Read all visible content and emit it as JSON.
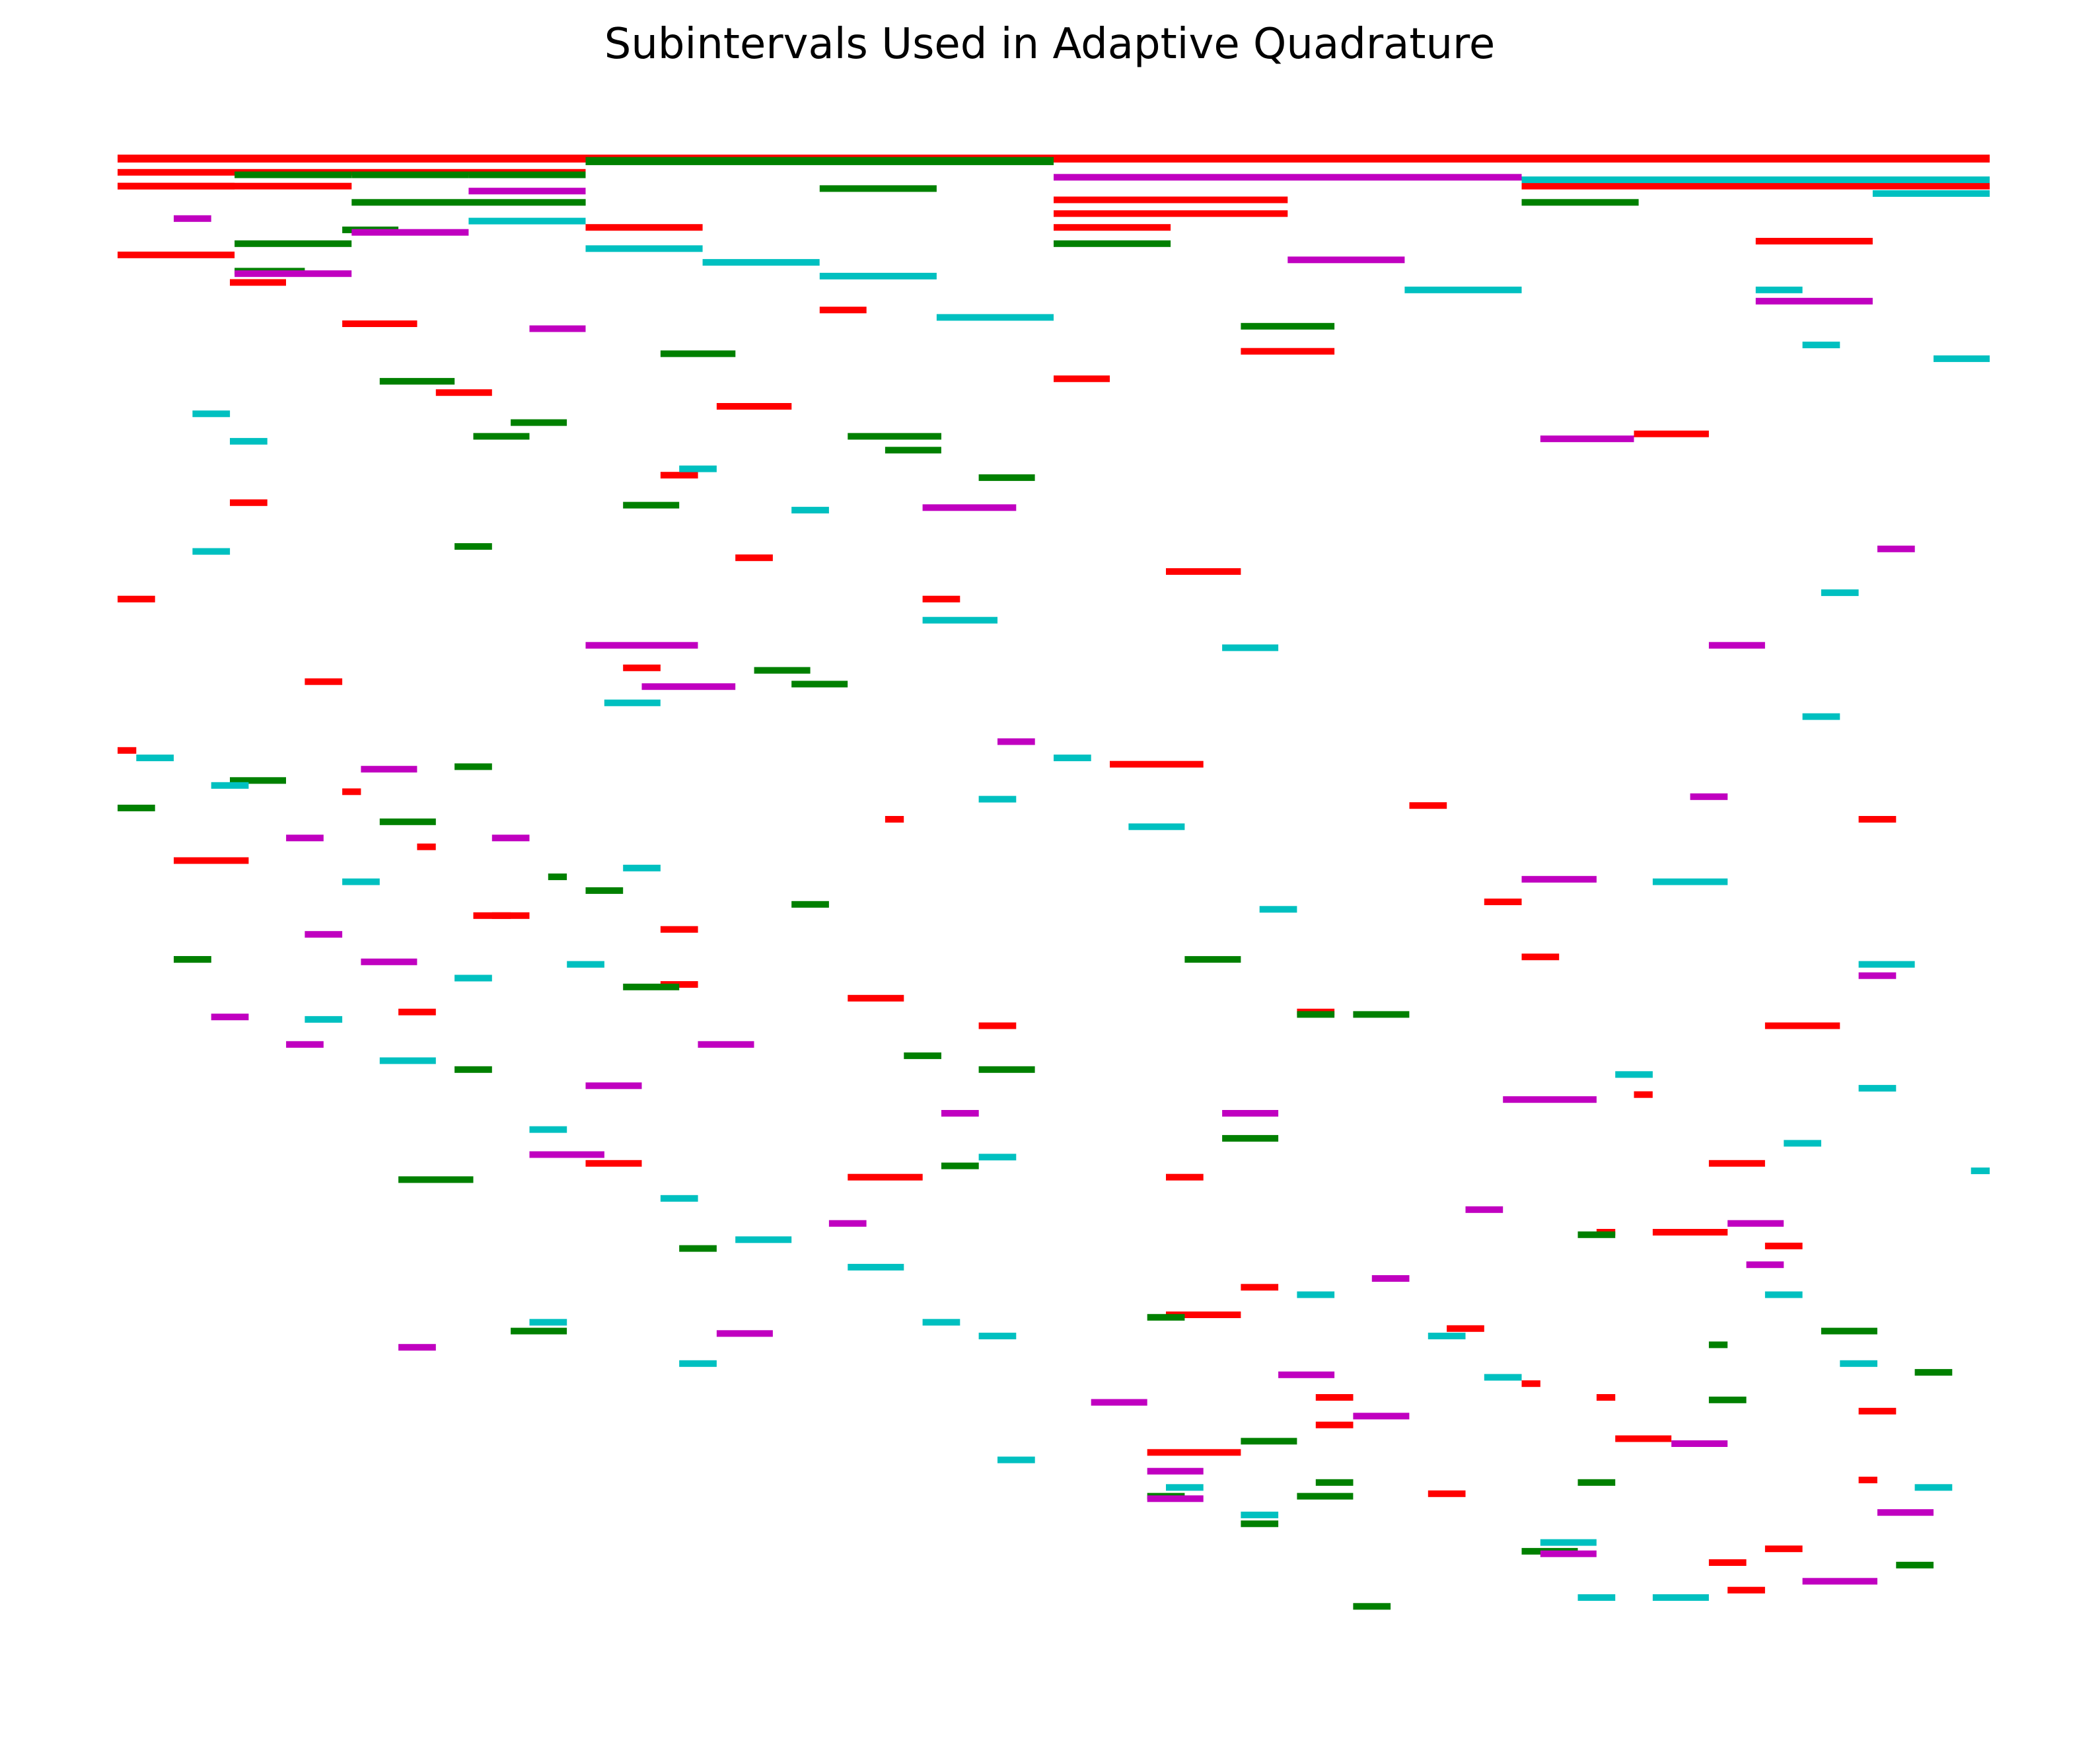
{
  "chart_data": {
    "type": "bar",
    "title": "Subintervals Used in Adaptive Quadrature",
    "xlabel": "",
    "ylabel": "",
    "axis_visible": false,
    "grid": false,
    "legend": "none",
    "xlim": [
      0,
      1
    ],
    "ylim": [
      0,
      108
    ],
    "series": [
      {
        "color": "#ff0000",
        "intervals": [
          [
            0,
            1,
            0
          ],
          [
            0,
            0.0625,
            2
          ],
          [
            0,
            0.25,
            1
          ],
          [
            0,
            0.0625,
            7
          ],
          [
            0,
            0.5,
            0
          ],
          [
            0.5,
            0.625,
            3
          ],
          [
            0.75,
            1,
            2
          ],
          [
            0,
            0.125,
            2
          ],
          [
            0.25,
            0.3125,
            5
          ],
          [
            0.5,
            0.5625,
            5
          ],
          [
            0.5,
            0.625,
            4
          ],
          [
            0.875,
            0.9375,
            6
          ],
          [
            0.6,
            0.65,
            14
          ],
          [
            0.12,
            0.16,
            12
          ],
          [
            0.06,
            0.09,
            9
          ],
          [
            0.5,
            0.53,
            16
          ],
          [
            0.17,
            0.2,
            17
          ],
          [
            0.32,
            0.36,
            18
          ],
          [
            0.81,
            0.85,
            20
          ],
          [
            0.29,
            0.31,
            23
          ],
          [
            0.375,
            0.4,
            11
          ],
          [
            0.33,
            0.35,
            29
          ],
          [
            0.0,
            0.01,
            43
          ],
          [
            0.12,
            0.13,
            46
          ],
          [
            0.16,
            0.17,
            50
          ],
          [
            0.2,
            0.22,
            55
          ],
          [
            0.29,
            0.31,
            60
          ],
          [
            0.27,
            0.29,
            37
          ],
          [
            0.43,
            0.45,
            32
          ],
          [
            0.63,
            0.65,
            62
          ],
          [
            0.56,
            0.58,
            74
          ],
          [
            0.79,
            0.8,
            78
          ],
          [
            0.88,
            0.92,
            63
          ],
          [
            0.85,
            0.88,
            73
          ],
          [
            0.15,
            0.17,
            62
          ],
          [
            0.0,
            0.02,
            32
          ],
          [
            0.06,
            0.08,
            25
          ],
          [
            0.53,
            0.58,
            44
          ],
          [
            0.69,
            0.71,
            47
          ],
          [
            0.73,
            0.75,
            54
          ],
          [
            0.75,
            0.77,
            58
          ],
          [
            0.81,
            0.82,
            68
          ],
          [
            0.93,
            0.95,
            48
          ],
          [
            0.56,
            0.6,
            30
          ],
          [
            0.41,
            0.42,
            48
          ],
          [
            0.46,
            0.48,
            63
          ],
          [
            0.55,
            0.6,
            94
          ],
          [
            0.6,
            0.62,
            82
          ],
          [
            0.64,
            0.66,
            90
          ],
          [
            0.71,
            0.73,
            85
          ],
          [
            0.79,
            0.8,
            90
          ],
          [
            0.82,
            0.86,
            78
          ],
          [
            0.88,
            0.9,
            79
          ],
          [
            0.93,
            0.95,
            91
          ],
          [
            0.93,
            0.94,
            96
          ],
          [
            0.03,
            0.07,
            51
          ],
          [
            0.1,
            0.12,
            38
          ],
          [
            0.19,
            0.21,
            55
          ],
          [
            0.29,
            0.31,
            56
          ],
          [
            0.25,
            0.28,
            73
          ],
          [
            0.39,
            0.42,
            61
          ],
          [
            0.39,
            0.43,
            74
          ],
          [
            0.56,
            0.6,
            84
          ],
          [
            0.64,
            0.66,
            92
          ],
          [
            0.7,
            0.72,
            97
          ],
          [
            0.86,
            0.88,
            104
          ],
          [
            0.88,
            0.9,
            101
          ],
          [
            0.85,
            0.87,
            102
          ],
          [
            0.75,
            0.76,
            89
          ],
          [
            0.8,
            0.83,
            93
          ]
        ]
      },
      {
        "color": "#008000",
        "intervals": [
          [
            0.25,
            0.5,
            0
          ],
          [
            0.0625,
            0.125,
            1
          ],
          [
            0.125,
            0.1875,
            1
          ],
          [
            0.1875,
            0.25,
            1
          ],
          [
            0.0625,
            0.125,
            6
          ],
          [
            0.125,
            0.25,
            3
          ],
          [
            0.25,
            0.5,
            0
          ],
          [
            0.375,
            0.4375,
            2
          ],
          [
            0.0625,
            0.1,
            8
          ],
          [
            0.75,
            0.8125,
            3
          ],
          [
            0.5,
            0.5625,
            6
          ],
          [
            0.6,
            0.65,
            12
          ],
          [
            0.14,
            0.18,
            16
          ],
          [
            0.21,
            0.24,
            19
          ],
          [
            0.27,
            0.3,
            25
          ],
          [
            0.39,
            0.44,
            20
          ],
          [
            0.41,
            0.44,
            21
          ],
          [
            0.46,
            0.49,
            23
          ],
          [
            0.12,
            0.15,
            5
          ],
          [
            0.19,
            0.22,
            20
          ],
          [
            0.34,
            0.37,
            37
          ],
          [
            0.36,
            0.39,
            38
          ],
          [
            0.06,
            0.09,
            45
          ],
          [
            0.14,
            0.17,
            48
          ],
          [
            0.23,
            0.24,
            52
          ],
          [
            0.27,
            0.3,
            60
          ],
          [
            0.15,
            0.19,
            74
          ],
          [
            0.57,
            0.6,
            58
          ],
          [
            0.66,
            0.69,
            62
          ],
          [
            0.42,
            0.44,
            65
          ],
          [
            0.55,
            0.57,
            84
          ],
          [
            0.6,
            0.63,
            93
          ],
          [
            0.64,
            0.66,
            96
          ],
          [
            0.75,
            0.78,
            101
          ],
          [
            0.85,
            0.87,
            90
          ],
          [
            0.03,
            0.05,
            58
          ],
          [
            0.18,
            0.2,
            44
          ],
          [
            0.29,
            0.33,
            14
          ],
          [
            0.78,
            0.8,
            78
          ],
          [
            0.85,
            0.86,
            86
          ],
          [
            0.96,
            0.98,
            88
          ],
          [
            0.46,
            0.49,
            66
          ],
          [
            0.59,
            0.62,
            71
          ],
          [
            0.63,
            0.66,
            97
          ],
          [
            0.78,
            0.8,
            96
          ],
          [
            0.21,
            0.24,
            85
          ],
          [
            0.3,
            0.32,
            79
          ],
          [
            0.91,
            0.94,
            85
          ],
          [
            0.95,
            0.97,
            102
          ],
          [
            0.18,
            0.2,
            66
          ],
          [
            0.63,
            0.65,
            62
          ],
          [
            0.0,
            0.02,
            47
          ],
          [
            0.03,
            0.05,
            58
          ],
          [
            0.18,
            0.2,
            28
          ],
          [
            0.25,
            0.27,
            53
          ],
          [
            0.36,
            0.38,
            54
          ],
          [
            0.44,
            0.46,
            73
          ],
          [
            0.55,
            0.57,
            97
          ],
          [
            0.6,
            0.62,
            99
          ],
          [
            0.66,
            0.68,
            105
          ]
        ]
      },
      {
        "color": "#c000c0",
        "intervals": [
          [
            0.5,
            0.75,
            1
          ],
          [
            0.125,
            0.1875,
            5
          ],
          [
            0.0625,
            0.125,
            8
          ],
          [
            0.1875,
            0.25,
            2
          ],
          [
            0.625,
            0.6875,
            7
          ],
          [
            0.875,
            0.9375,
            10
          ],
          [
            0.03,
            0.05,
            4
          ],
          [
            0.22,
            0.25,
            12
          ],
          [
            0.43,
            0.48,
            25
          ],
          [
            0.76,
            0.81,
            20
          ],
          [
            0.13,
            0.16,
            44
          ],
          [
            0.25,
            0.31,
            35
          ],
          [
            0.28,
            0.33,
            38
          ],
          [
            0.74,
            0.79,
            68
          ],
          [
            0.86,
            0.89,
            77
          ],
          [
            0.09,
            0.11,
            49
          ],
          [
            0.13,
            0.16,
            58
          ],
          [
            0.25,
            0.28,
            67
          ],
          [
            0.32,
            0.35,
            85
          ],
          [
            0.47,
            0.49,
            42
          ],
          [
            0.59,
            0.62,
            69
          ],
          [
            0.62,
            0.65,
            88
          ],
          [
            0.83,
            0.86,
            93
          ],
          [
            0.94,
            0.97,
            98
          ],
          [
            0.52,
            0.55,
            90
          ],
          [
            0.55,
            0.58,
            95
          ],
          [
            0.76,
            0.79,
            101
          ],
          [
            0.15,
            0.17,
            86
          ],
          [
            0.9,
            0.94,
            103
          ],
          [
            0.66,
            0.69,
            91
          ],
          [
            0.87,
            0.89,
            80
          ],
          [
            0.1,
            0.12,
            56
          ],
          [
            0.2,
            0.22,
            49
          ],
          [
            0.22,
            0.26,
            72
          ],
          [
            0.55,
            0.58,
            97
          ],
          [
            0.85,
            0.88,
            35
          ],
          [
            0.94,
            0.96,
            28
          ],
          [
            0.75,
            0.79,
            52
          ],
          [
            0.05,
            0.07,
            62
          ],
          [
            0.31,
            0.34,
            64
          ],
          [
            0.44,
            0.46,
            69
          ],
          [
            0.72,
            0.74,
            76
          ],
          [
            0.67,
            0.69,
            81
          ],
          [
            0.09,
            0.11,
            64
          ],
          [
            0.38,
            0.4,
            77
          ],
          [
            0.84,
            0.86,
            46
          ],
          [
            0.93,
            0.95,
            59
          ]
        ]
      },
      {
        "color": "#00c0c0",
        "intervals": [
          [
            0.75,
            1,
            1
          ],
          [
            0.9375,
            1,
            2
          ],
          [
            0.1875,
            0.25,
            4
          ],
          [
            0.25,
            0.3125,
            6
          ],
          [
            0.3125,
            0.375,
            7
          ],
          [
            0.375,
            0.4375,
            8
          ],
          [
            0.6875,
            0.75,
            9
          ],
          [
            0.4375,
            0.5,
            11
          ],
          [
            0.875,
            0.9,
            9
          ],
          [
            0.9,
            0.92,
            13
          ],
          [
            0.97,
            1,
            14
          ],
          [
            0.04,
            0.06,
            18
          ],
          [
            0.06,
            0.08,
            20
          ],
          [
            0.3,
            0.32,
            22
          ],
          [
            0.36,
            0.38,
            25
          ],
          [
            0.43,
            0.47,
            33
          ],
          [
            0.26,
            0.29,
            39
          ],
          [
            0.04,
            0.06,
            28
          ],
          [
            0.46,
            0.48,
            46
          ],
          [
            0.54,
            0.57,
            48
          ],
          [
            0.61,
            0.63,
            54
          ],
          [
            0.82,
            0.86,
            52
          ],
          [
            0.93,
            0.96,
            58
          ],
          [
            0.9,
            0.92,
            40
          ],
          [
            0.5,
            0.52,
            43
          ],
          [
            0.27,
            0.29,
            51
          ],
          [
            0.18,
            0.2,
            59
          ],
          [
            0.1,
            0.12,
            62
          ],
          [
            0.14,
            0.17,
            65
          ],
          [
            0.22,
            0.24,
            70
          ],
          [
            0.29,
            0.31,
            75
          ],
          [
            0.33,
            0.36,
            78
          ],
          [
            0.39,
            0.42,
            80
          ],
          [
            0.46,
            0.48,
            85
          ],
          [
            0.47,
            0.49,
            94
          ],
          [
            0.56,
            0.58,
            96
          ],
          [
            0.6,
            0.62,
            98
          ],
          [
            0.76,
            0.79,
            100
          ],
          [
            0.78,
            0.8,
            104
          ],
          [
            0.82,
            0.85,
            104
          ],
          [
            0.88,
            0.9,
            82
          ],
          [
            0.92,
            0.94,
            87
          ],
          [
            0.96,
            0.98,
            96
          ],
          [
            0.63,
            0.65,
            82
          ],
          [
            0.22,
            0.24,
            84
          ],
          [
            0.3,
            0.32,
            87
          ],
          [
            0.43,
            0.45,
            84
          ],
          [
            0.46,
            0.48,
            72
          ],
          [
            0.59,
            0.62,
            35
          ],
          [
            0.91,
            0.93,
            31
          ],
          [
            0.24,
            0.26,
            58
          ],
          [
            0.7,
            0.72,
            85
          ],
          [
            0.73,
            0.75,
            88
          ],
          [
            0.99,
            1,
            73
          ],
          [
            0.8,
            0.82,
            66
          ],
          [
            0.89,
            0.91,
            71
          ],
          [
            0.93,
            0.95,
            67
          ],
          [
            0.12,
            0.14,
            52
          ],
          [
            0.05,
            0.07,
            45
          ],
          [
            0.01,
            0.03,
            43
          ]
        ]
      }
    ]
  }
}
